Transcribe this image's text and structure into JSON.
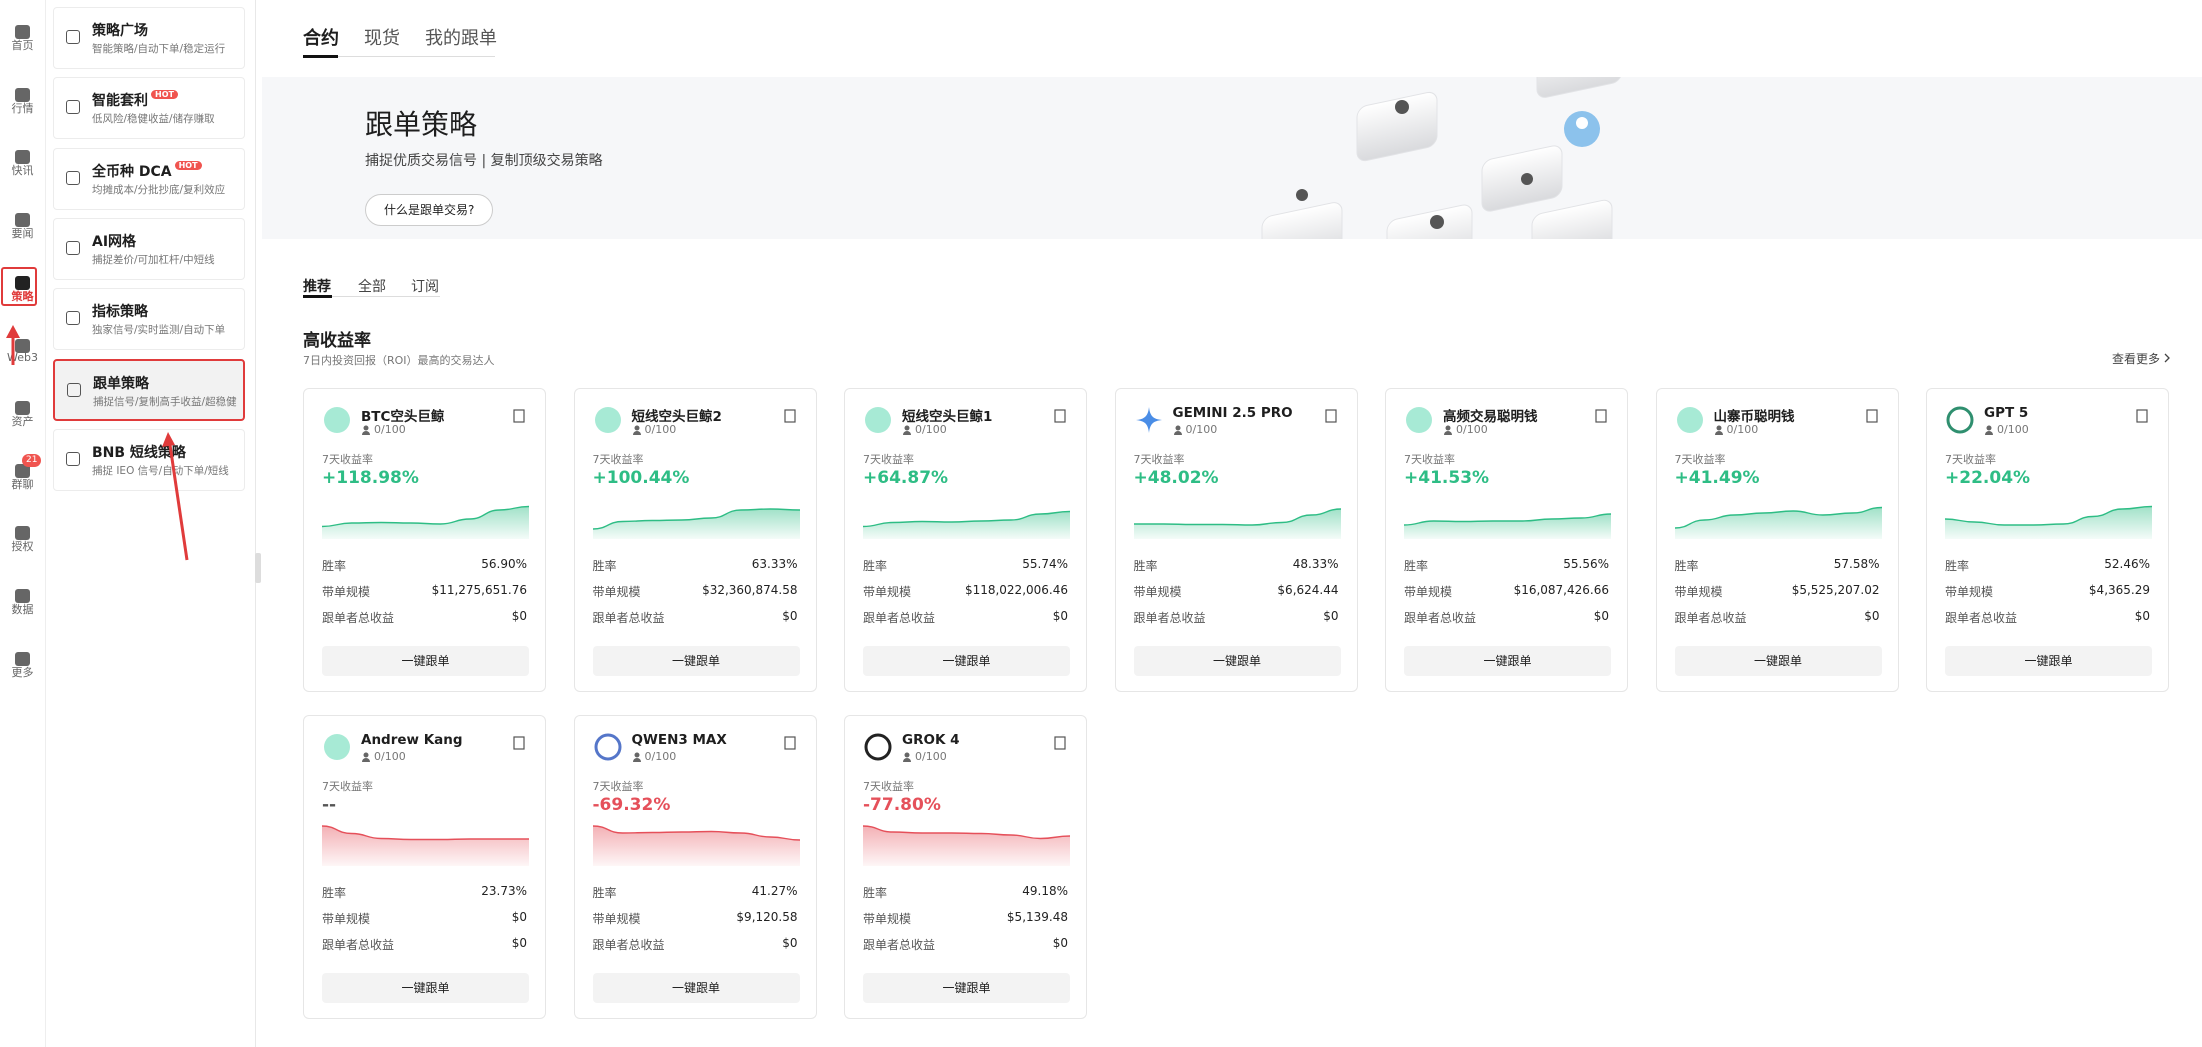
{
  "rail": [
    {
      "label": "首页"
    },
    {
      "label": "行情"
    },
    {
      "label": "快讯"
    },
    {
      "label": "要闻"
    },
    {
      "label": "策略"
    },
    {
      "label": "Web3"
    },
    {
      "label": "资产"
    },
    {
      "label": "群聊",
      "badge": "21"
    },
    {
      "label": "授权"
    },
    {
      "label": "数据"
    },
    {
      "label": "更多"
    }
  ],
  "menu": [
    {
      "title": "策略广场",
      "desc": "智能策略/自动下单/稳定运行"
    },
    {
      "title": "智能套利",
      "tag": "HOT",
      "desc": "低风险/稳健收益/储存赚取"
    },
    {
      "title": "全币种 DCA",
      "tag": "HOT",
      "desc": "均摊成本/分批抄底/复利效应"
    },
    {
      "title": "AI网格",
      "desc": "捕捉差价/可加杠杆/中短线"
    },
    {
      "title": "指标策略",
      "desc": "独家信号/实时监测/自动下单"
    },
    {
      "title": "跟单策略",
      "desc": "捕捉信号/复制高手收益/超稳健"
    },
    {
      "title": "BNB 短线策略",
      "desc": "捕捉 IEO 信号/自动下单/短线"
    }
  ],
  "tabs": [
    "合约",
    "现货",
    "我的跟单"
  ],
  "banner": {
    "title": "跟单策略",
    "subtitle": "捕捉优质交易信号 | 复制顶级交易策略",
    "button": "什么是跟单交易?"
  },
  "subtabs": [
    "推荐",
    "全部",
    "订阅"
  ],
  "section": {
    "title": "高收益率",
    "desc": "7日内投资回报（ROI）最高的交易达人",
    "more": "查看更多"
  },
  "labels": {
    "roi": "7天收益率",
    "win": "胜率",
    "aum": "带单规模",
    "profit": "跟单者总收益",
    "button": "一键跟单"
  },
  "sparkline_ylim": [
    0,
    100
  ],
  "cards": [
    {
      "name": "BTC空头巨鲸",
      "followers": "0/100",
      "roi": "+118.98%",
      "win_rate": "56.90%",
      "aum": "$11,275,651.76",
      "profit": "$0",
      "color": "#2ebd85",
      "trend": [
        25,
        32,
        33,
        32,
        30,
        40,
        58,
        65
      ]
    },
    {
      "name": "短线空头巨鲸2",
      "followers": "0/100",
      "roi": "+100.44%",
      "win_rate": "63.33%",
      "aum": "$32,360,874.58",
      "profit": "$0",
      "color": "#2ebd85",
      "trend": [
        20,
        35,
        37,
        38,
        42,
        58,
        60,
        58
      ]
    },
    {
      "name": "短线空头巨鲸1",
      "followers": "0/100",
      "roi": "+64.87%",
      "win_rate": "55.74%",
      "aum": "$118,022,006.46",
      "profit": "$0",
      "color": "#2ebd85",
      "trend": [
        25,
        33,
        35,
        34,
        36,
        38,
        50,
        55
      ]
    },
    {
      "name": "GEMINI 2.5 PRO",
      "followers": "0/100",
      "roi": "+48.02%",
      "win_rate": "48.33%",
      "aum": "$6,624.44",
      "profit": "$0",
      "color": "#2ebd85",
      "trend": [
        30,
        30,
        29,
        29,
        28,
        33,
        48,
        60
      ]
    },
    {
      "name": "高频交易聪明钱",
      "followers": "0/100",
      "roi": "+41.53%",
      "win_rate": "55.56%",
      "aum": "$16,087,426.66",
      "profit": "$0",
      "color": "#2ebd85",
      "trend": [
        28,
        36,
        35,
        36,
        36,
        40,
        42,
        50
      ]
    },
    {
      "name": "山寨币聪明钱",
      "followers": "0/100",
      "roi": "+41.49%",
      "win_rate": "57.58%",
      "aum": "$5,525,207.02",
      "profit": "$0",
      "color": "#2ebd85",
      "trend": [
        22,
        38,
        48,
        52,
        56,
        48,
        52,
        63
      ]
    },
    {
      "name": "GPT 5",
      "followers": "0/100",
      "roi": "+22.04%",
      "win_rate": "52.46%",
      "aum": "$4,365.29",
      "profit": "$0",
      "color": "#2ebd85",
      "trend": [
        40,
        34,
        28,
        28,
        30,
        45,
        60,
        65
      ]
    },
    {
      "name": "Andrew Kang",
      "followers": "0/100",
      "roi": "--",
      "win_rate": "23.73%",
      "aum": "$0",
      "profit": "$0",
      "color": "#e5505a",
      "trend": [
        80,
        65,
        55,
        53,
        53,
        54,
        54,
        54
      ]
    },
    {
      "name": "QWEN3 MAX",
      "followers": "0/100",
      "roi": "-69.32%",
      "win_rate": "41.27%",
      "aum": "$9,120.58",
      "profit": "$0",
      "color": "#e5505a",
      "trend": [
        80,
        66,
        67,
        68,
        69,
        66,
        58,
        52
      ]
    },
    {
      "name": "GROK 4",
      "followers": "0/100",
      "roi": "-77.80%",
      "win_rate": "49.18%",
      "aum": "$5,139.48",
      "profit": "$0",
      "color": "#e5505a",
      "trend": [
        80,
        68,
        66,
        66,
        65,
        62,
        55,
        60
      ]
    }
  ]
}
